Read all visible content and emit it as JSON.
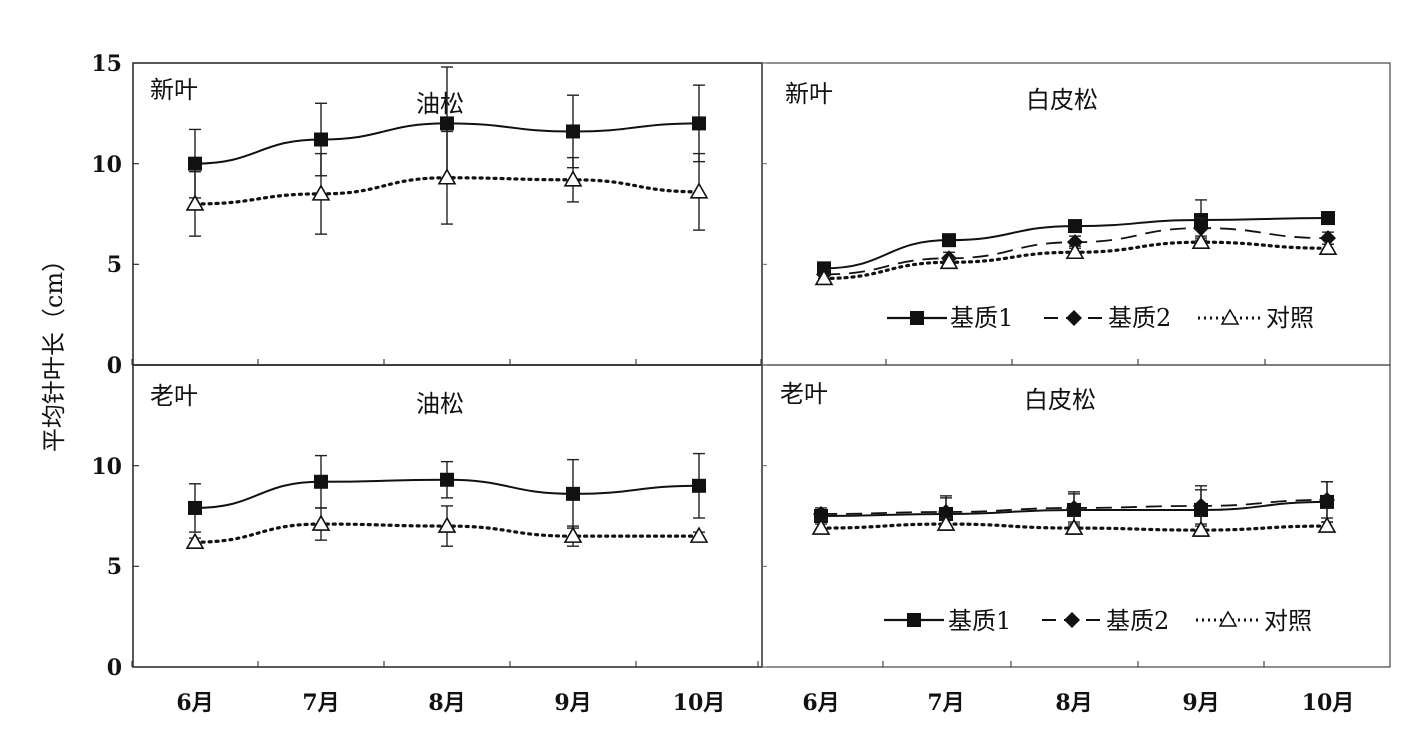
{
  "figure": {
    "ylabel": "平均针叶长（cm）",
    "months": [
      "6月",
      "7月",
      "8月",
      "9月",
      "10月"
    ],
    "yticks": [
      "0",
      "5",
      "10",
      "15"
    ],
    "colors": {
      "line": "#111111",
      "background": "#ffffff"
    }
  },
  "chart_data": [
    {
      "type": "line",
      "panel": "top-left",
      "label": "新叶",
      "title": "油松",
      "categories": [
        "6月",
        "7月",
        "8月",
        "9月",
        "10月"
      ],
      "ylim": [
        0,
        15
      ],
      "series": [
        {
          "name": "基质1",
          "style": "solid",
          "marker": "square",
          "values": [
            10.0,
            11.2,
            12.0,
            11.6,
            12.0
          ],
          "errors": [
            1.7,
            1.8,
            2.8,
            1.8,
            1.9
          ]
        },
        {
          "name": "对照",
          "style": "dotted",
          "marker": "triangle",
          "values": [
            8.0,
            8.5,
            9.3,
            9.2,
            8.6
          ],
          "errors": [
            1.6,
            2.0,
            2.3,
            1.1,
            1.9
          ]
        }
      ]
    },
    {
      "type": "line",
      "panel": "top-right",
      "label": "新叶",
      "title": "白皮松",
      "categories": [
        "6月",
        "7月",
        "8月",
        "9月",
        "10月"
      ],
      "ylim": [
        0,
        15
      ],
      "legend": [
        "基质1",
        "基质2",
        "对照"
      ],
      "series": [
        {
          "name": "基质1",
          "style": "solid",
          "marker": "square",
          "values": [
            4.8,
            6.2,
            6.9,
            7.2,
            7.3
          ],
          "errors": [
            0.2,
            0.2,
            0.2,
            1.0,
            0.2
          ]
        },
        {
          "name": "基质2",
          "style": "dashed",
          "marker": "diamond",
          "values": [
            4.5,
            5.3,
            6.1,
            6.8,
            6.3
          ],
          "errors": [
            0.2,
            0.3,
            0.3,
            0.5,
            0.3
          ]
        },
        {
          "name": "对照",
          "style": "dotted",
          "marker": "triangle",
          "values": [
            4.3,
            5.1,
            5.6,
            6.1,
            5.8
          ],
          "errors": [
            0.2,
            0.2,
            0.3,
            0.3,
            0.2
          ]
        }
      ]
    },
    {
      "type": "line",
      "panel": "bottom-left",
      "label": "老叶",
      "title": "油松",
      "categories": [
        "6月",
        "7月",
        "8月",
        "9月",
        "10月"
      ],
      "ylim": [
        0,
        15
      ],
      "series": [
        {
          "name": "基质1",
          "style": "solid",
          "marker": "square",
          "values": [
            7.9,
            9.2,
            9.3,
            8.6,
            9.0
          ],
          "errors": [
            1.2,
            1.3,
            0.9,
            1.7,
            1.6
          ]
        },
        {
          "name": "对照",
          "style": "dotted",
          "marker": "triangle",
          "values": [
            6.2,
            7.1,
            7.0,
            6.5,
            6.5
          ],
          "errors": [
            0.2,
            0.8,
            1.0,
            0.5,
            0.2
          ]
        }
      ]
    },
    {
      "type": "line",
      "panel": "bottom-right",
      "label": "老叶",
      "title": "白皮松",
      "categories": [
        "6月",
        "7月",
        "8月",
        "9月",
        "10月"
      ],
      "ylim": [
        0,
        15
      ],
      "legend": [
        "基质1",
        "基质2",
        "对照"
      ],
      "series": [
        {
          "name": "基质1",
          "style": "solid",
          "marker": "square",
          "values": [
            7.5,
            7.6,
            7.8,
            7.8,
            8.2
          ],
          "errors": [
            0.3,
            0.8,
            0.8,
            1.0,
            1.0
          ]
        },
        {
          "name": "基质2",
          "style": "dashed",
          "marker": "diamond",
          "values": [
            7.6,
            7.7,
            7.9,
            8.0,
            8.3
          ],
          "errors": [
            0.3,
            0.8,
            0.8,
            1.0,
            0.9
          ]
        },
        {
          "name": "对照",
          "style": "dotted",
          "marker": "triangle",
          "values": [
            6.9,
            7.1,
            6.9,
            6.8,
            7.0
          ],
          "errors": [
            0.2,
            0.3,
            0.3,
            0.3,
            0.2
          ]
        }
      ]
    }
  ]
}
